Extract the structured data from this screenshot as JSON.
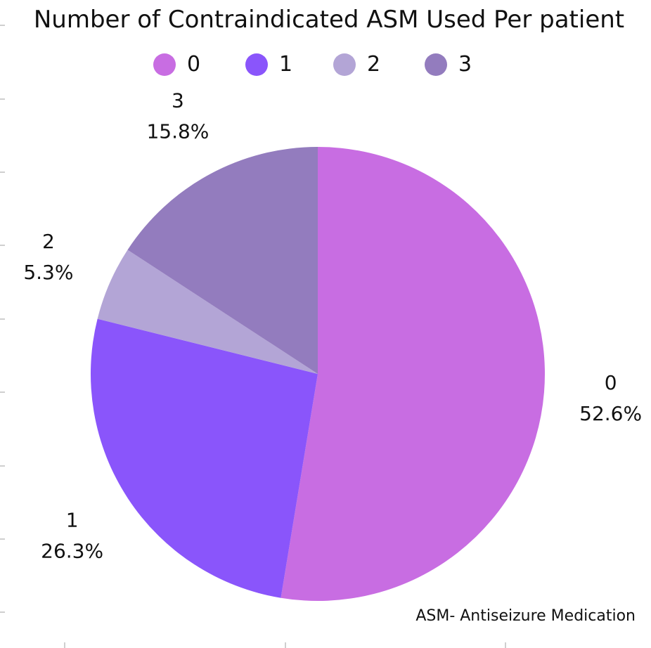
{
  "chart_data": {
    "type": "pie",
    "title": "Number of Contraindicated ASM Used Per patient",
    "legend_position": "top",
    "categories": [
      "0",
      "1",
      "2",
      "3"
    ],
    "values": [
      52.6,
      26.3,
      5.3,
      15.8
    ],
    "value_labels": [
      "52.6%",
      "26.3%",
      "5.3%",
      "15.8%"
    ],
    "colors": [
      "#C86DE2",
      "#8A55FB",
      "#B3A5D6",
      "#937CBE"
    ],
    "start_angle": "12 o'clock",
    "direction": "clockwise",
    "annotation": "ASM- Antiseizure Medication"
  }
}
